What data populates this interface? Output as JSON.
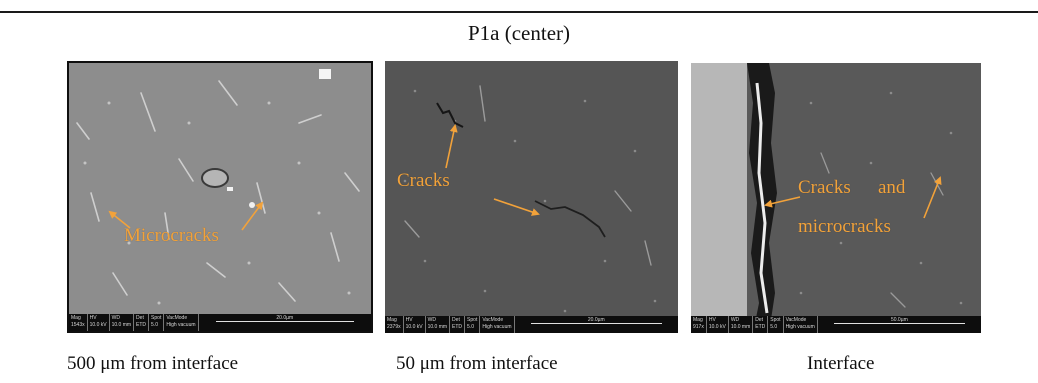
{
  "figure": {
    "title": "P1a (center)"
  },
  "panels": [
    {
      "caption": "500 μm from interface",
      "annotations": [
        "Microcracks"
      ],
      "infobar": {
        "headers": [
          "Mag",
          "HV",
          "WD",
          "Det",
          "Spot",
          "VacMode"
        ],
        "values": [
          "1543x",
          "10.0 kV",
          "10.0 mm",
          "ETD",
          "5.0",
          "High vacuum"
        ],
        "scale": "20.0µm"
      }
    },
    {
      "caption": "50 μm from interface",
      "annotations": [
        "Cracks"
      ],
      "infobar": {
        "headers": [
          "Mag",
          "HV",
          "WD",
          "Det",
          "Spot",
          "VacMode"
        ],
        "values": [
          "2379x",
          "10.0 kV",
          "10.0 mm",
          "ETD",
          "5.0",
          "High vacuum"
        ],
        "scale": "20.0µm"
      }
    },
    {
      "caption": "Interface",
      "annotations": [
        "Cracks",
        "and",
        "microcracks"
      ],
      "infobar": {
        "headers": [
          "Mag",
          "HV",
          "WD",
          "Det",
          "Spot",
          "VacMode"
        ],
        "values": [
          "917x",
          "10.0 kV",
          "10.0 mm",
          "ETD",
          "5.0",
          "High vacuum"
        ],
        "scale": "50.0µm"
      }
    }
  ],
  "colors": {
    "annotation": "#f2a23a",
    "rule": "#1a1a1a"
  }
}
